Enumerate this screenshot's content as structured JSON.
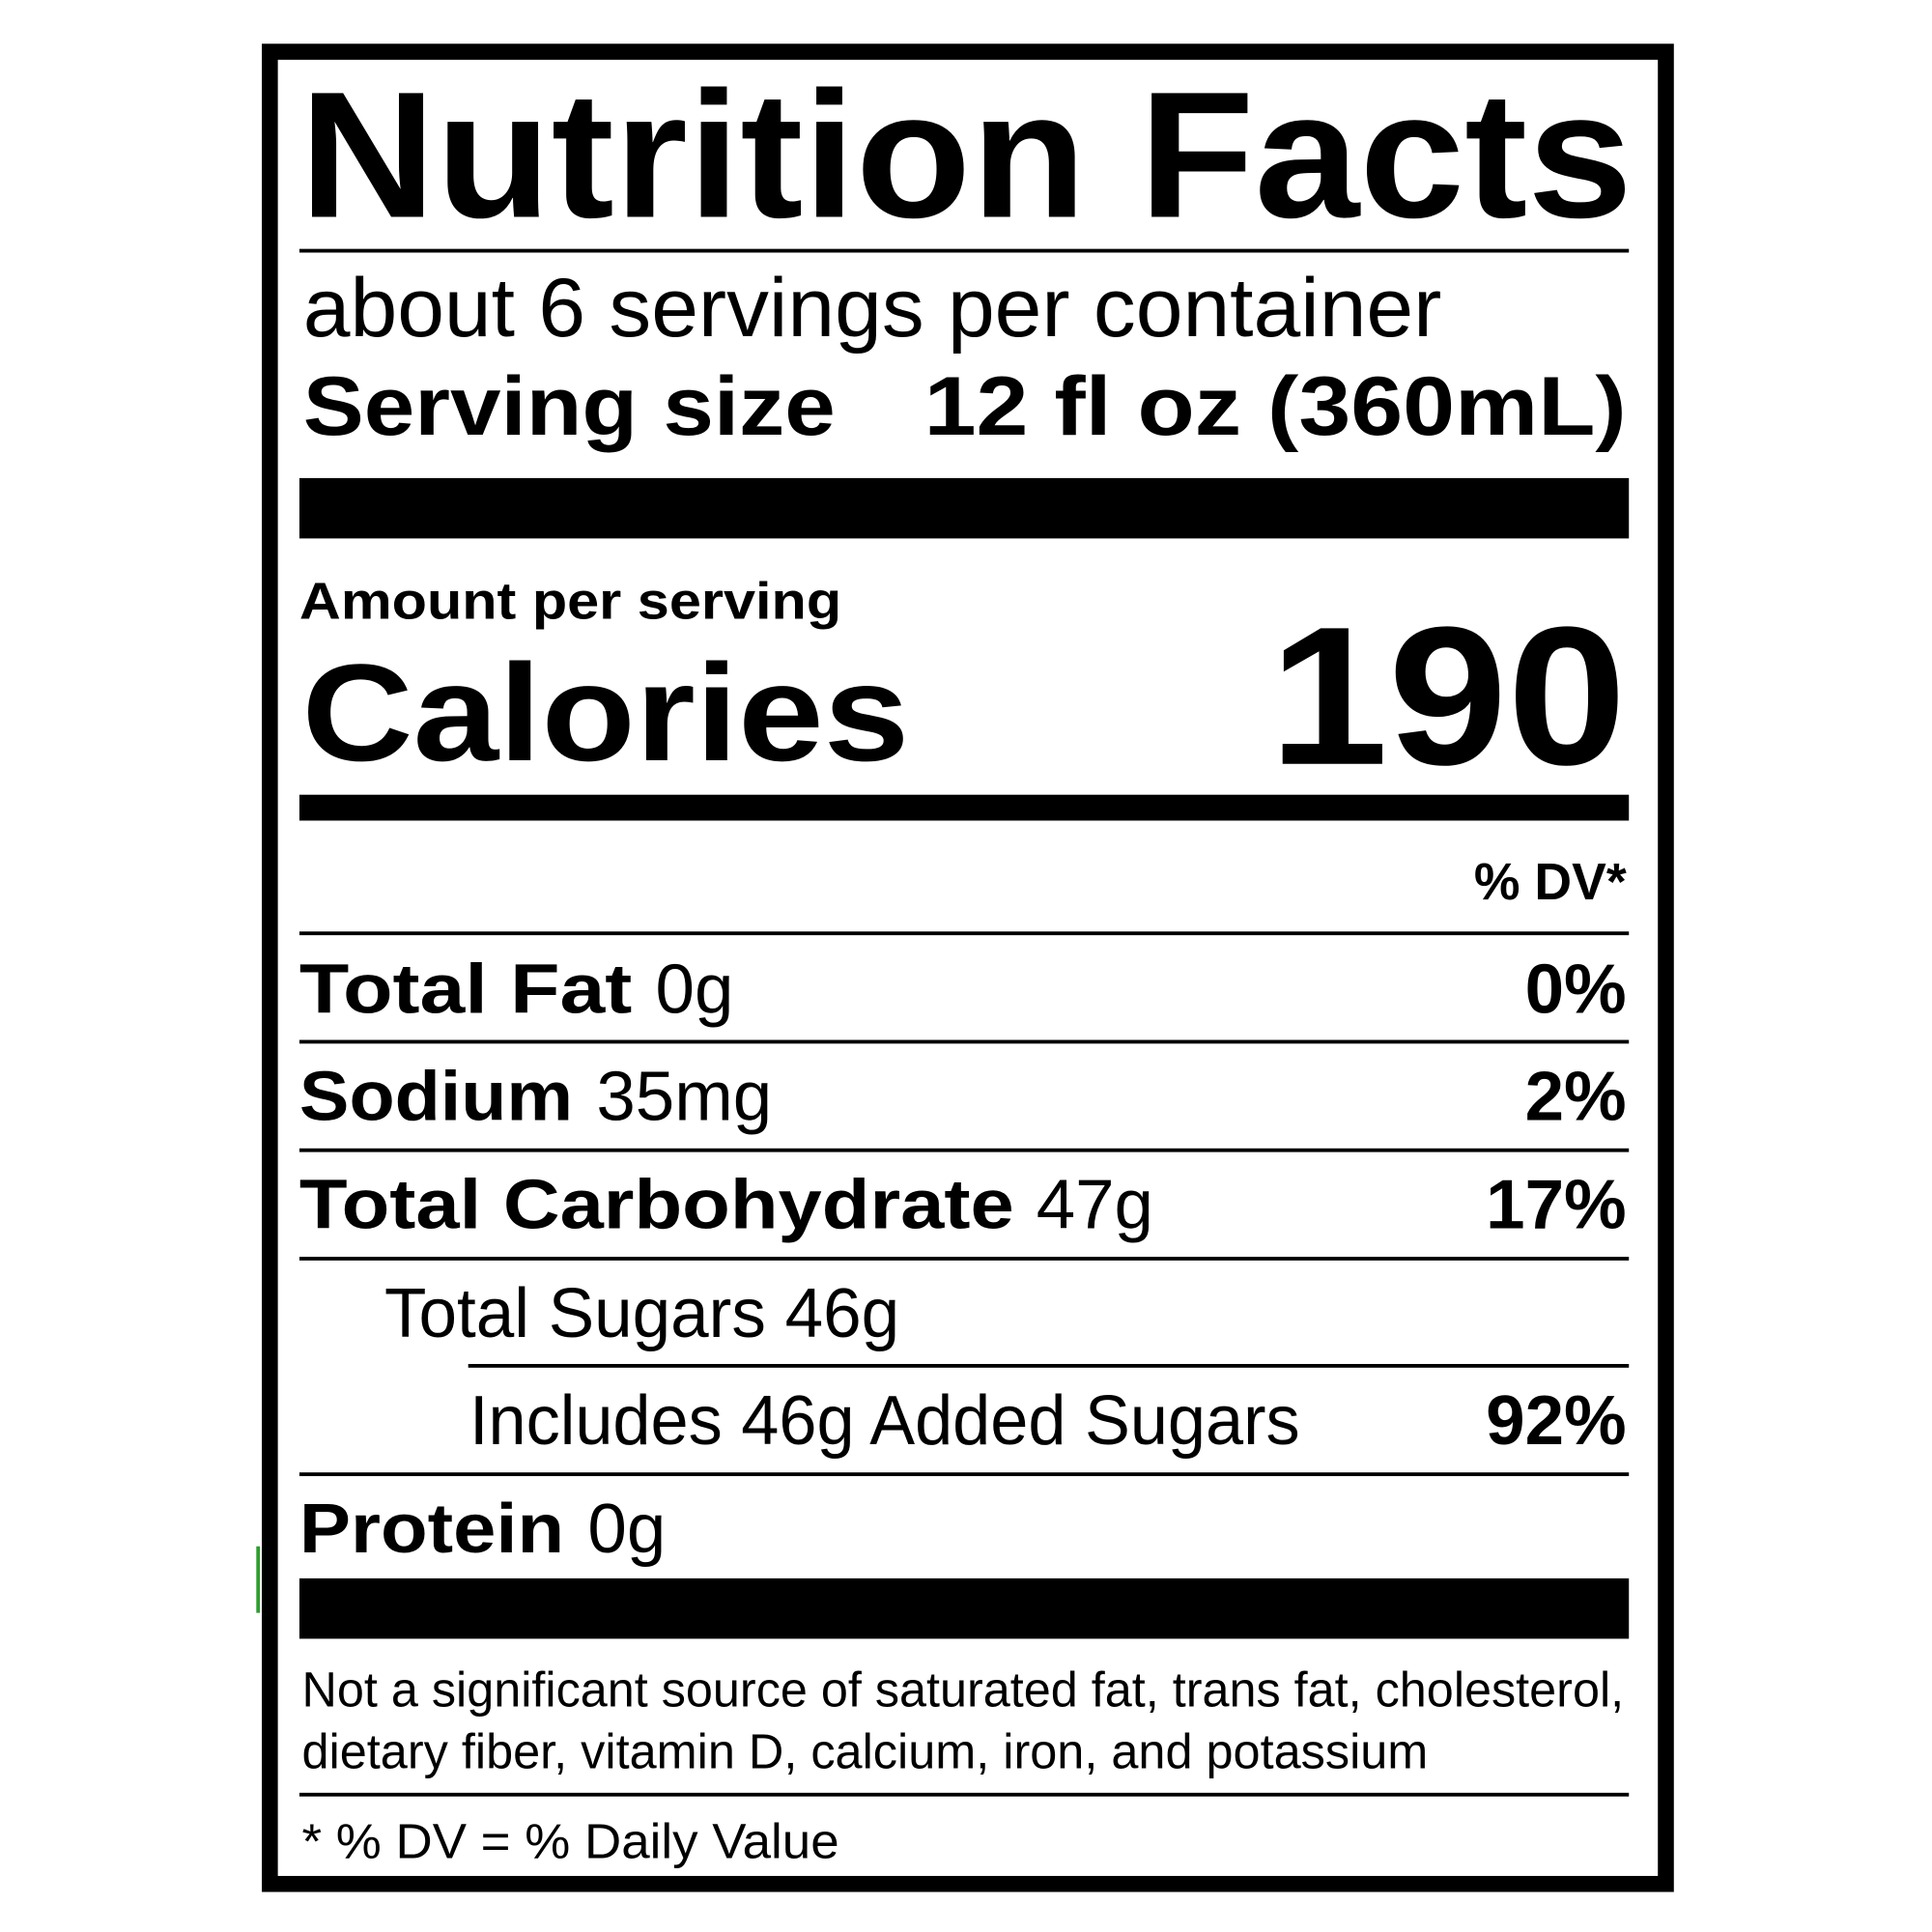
{
  "label": {
    "title": "Nutrition Facts",
    "servings_per_container": "about 6 servings per container",
    "serving_size_label": "Serving size",
    "serving_size_value": "12 fl oz (360mL)",
    "amount_per_serving": "Amount per serving",
    "calories_label": "Calories",
    "calories_value": "190",
    "dv_header": "% DV*",
    "nutrients": [
      {
        "name": "Total Fat",
        "amount": "0g",
        "dv": "0%"
      },
      {
        "name": "Sodium",
        "amount": "35mg",
        "dv": "2%"
      },
      {
        "name": "Total Carbohydrate",
        "amount": "47g",
        "dv": "17%"
      },
      {
        "name": "Total Sugars 46g"
      },
      {
        "name": "Includes 46g Added Sugars",
        "dv": "92%"
      },
      {
        "name": "Protein",
        "amount": "0g"
      }
    ],
    "footnote_line1": "Not a significant source of saturated fat, trans fat, cholesterol,",
    "footnote_line2": "dietary fiber, vitamin D, calcium, iron, and potassium",
    "dv_definition": "* % DV = % Daily Value"
  },
  "colors": {
    "ink": "#000000",
    "background": "#ffffff",
    "edge_mark": "#2e9e2e"
  }
}
